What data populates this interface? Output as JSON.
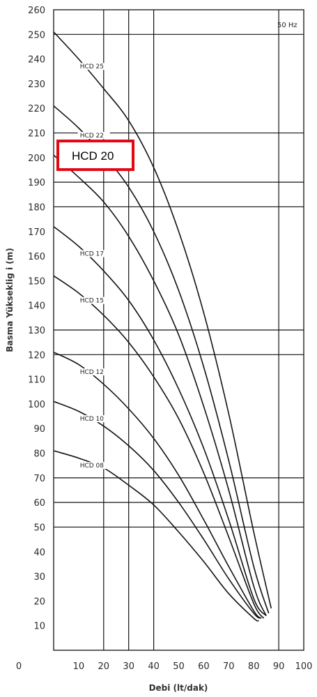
{
  "chart_data": {
    "type": "line",
    "title": "",
    "xlabel": "Debi (lt/dak)",
    "ylabel": "Basma Yükseklig i (m)",
    "xlim": [
      0,
      100
    ],
    "ylim": [
      0,
      260
    ],
    "x_ticks": [
      0,
      10,
      20,
      30,
      40,
      50,
      60,
      70,
      80,
      90,
      100
    ],
    "y_ticks": [
      10,
      20,
      30,
      40,
      50,
      60,
      70,
      80,
      90,
      100,
      110,
      120,
      130,
      140,
      150,
      160,
      170,
      180,
      190,
      200,
      210,
      220,
      230,
      240,
      250,
      260
    ],
    "y_tick_zero_label": "0",
    "grid_x": [
      20,
      30,
      40,
      90
    ],
    "grid_y": [
      50,
      60,
      70,
      120,
      130,
      180,
      190,
      210,
      250
    ],
    "frequency_label": "50 Hz",
    "series": [
      {
        "name": "HCD 25",
        "x": [
          0,
          10,
          20,
          30,
          40,
          50,
          60,
          70,
          80,
          87
        ],
        "y": [
          251,
          240,
          228,
          215,
          196,
          170,
          137,
          96,
          48,
          17
        ]
      },
      {
        "name": "HCD 22",
        "x": [
          0,
          10,
          20,
          30,
          40,
          50,
          60,
          70,
          80,
          86
        ],
        "y": [
          221,
          212,
          201,
          188,
          170,
          146,
          115,
          77,
          34,
          15
        ]
      },
      {
        "name": "HCD 20",
        "x": [
          0,
          10,
          20,
          30,
          40,
          50,
          60,
          70,
          80,
          85
        ],
        "y": [
          201,
          192,
          182,
          168,
          150,
          128,
          99,
          65,
          26,
          14
        ]
      },
      {
        "name": "HCD 17",
        "x": [
          0,
          10,
          20,
          30,
          40,
          50,
          60,
          70,
          80,
          85
        ],
        "y": [
          172,
          164,
          154,
          142,
          126,
          106,
          82,
          53,
          21,
          14
        ]
      },
      {
        "name": "HCD 15",
        "x": [
          0,
          10,
          20,
          30,
          40,
          50,
          60,
          70,
          80,
          84
        ],
        "y": [
          152,
          145,
          136,
          125,
          111,
          94,
          72,
          46,
          19,
          13
        ]
      },
      {
        "name": "HCD 12",
        "x": [
          0,
          10,
          20,
          30,
          40,
          50,
          60,
          70,
          80,
          83
        ],
        "y": [
          121,
          116,
          108,
          98,
          86,
          71,
          53,
          34,
          16,
          13
        ]
      },
      {
        "name": "HCD 10",
        "x": [
          0,
          10,
          20,
          30,
          40,
          50,
          60,
          70,
          80,
          83
        ],
        "y": [
          101,
          97,
          91,
          83,
          73,
          60,
          45,
          29,
          15,
          13
        ]
      },
      {
        "name": "HCD 08",
        "x": [
          0,
          10,
          20,
          30,
          40,
          50,
          60,
          70,
          80,
          82
        ],
        "y": [
          81,
          78,
          74,
          67,
          59,
          48,
          36,
          23,
          13,
          12
        ]
      }
    ],
    "curve_labels": [
      "HCD 25",
      "HCD 22",
      "HCD 17",
      "HCD 15",
      "HCD 12",
      "HCD 10",
      "HCD 08"
    ],
    "highlight": {
      "series": "HCD 20",
      "label": "HCD 20",
      "color": "#e30613"
    }
  }
}
